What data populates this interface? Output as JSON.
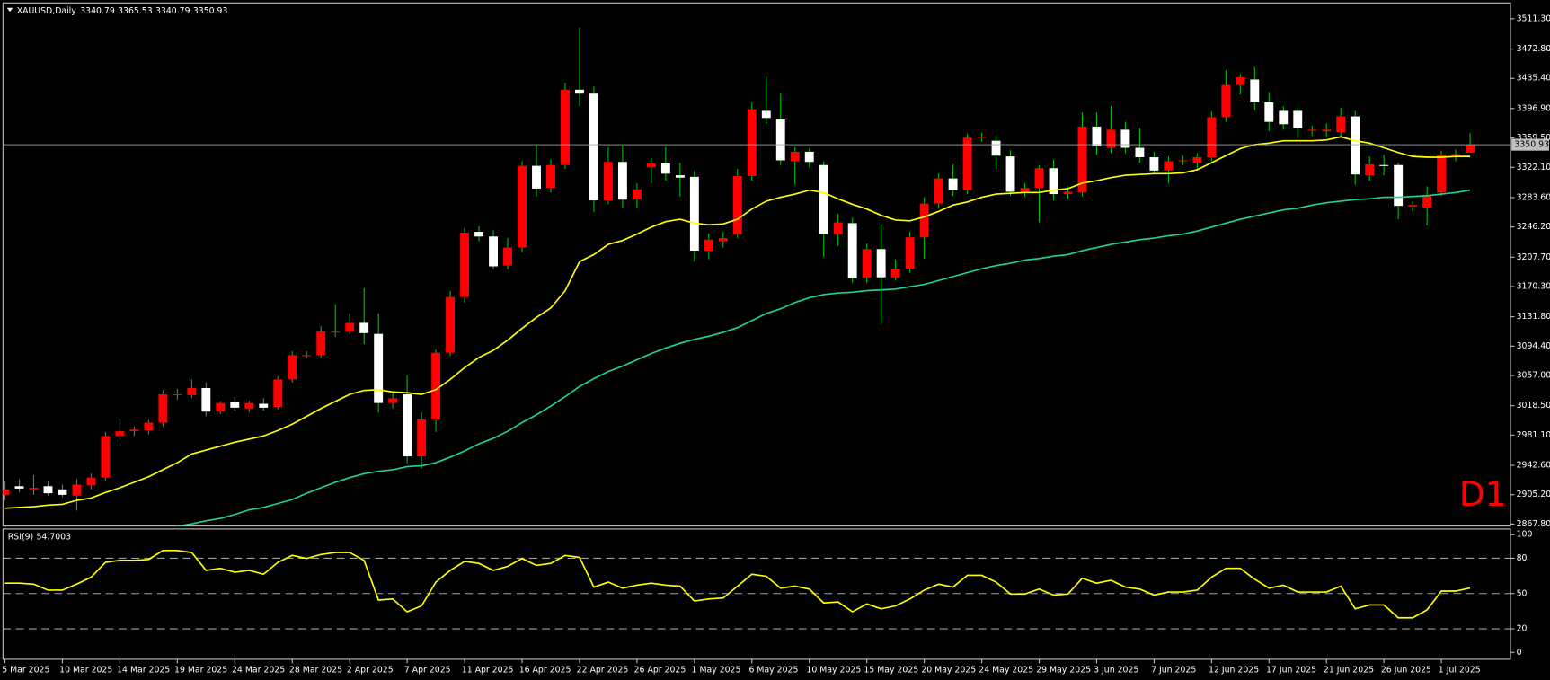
{
  "chart_data": [
    {
      "type": "candlestick",
      "symbol": "XAUUSD,Daily",
      "annotation": "D1",
      "categories": [
        "5 Mar 2025",
        null,
        null,
        null,
        "10 Mar 2025",
        null,
        null,
        null,
        "14 Mar 2025",
        null,
        null,
        null,
        "19 Mar 2025",
        null,
        null,
        null,
        "24 Mar 2025",
        null,
        null,
        null,
        "28 Mar 2025",
        null,
        null,
        null,
        "2 Apr 2025",
        null,
        null,
        null,
        "7 Apr 2025",
        null,
        null,
        null,
        "11 Apr 2025",
        null,
        null,
        null,
        "16 Apr 2025",
        null,
        null,
        null,
        "22 Apr 2025",
        null,
        null,
        null,
        "26 Apr 2025",
        null,
        null,
        null,
        "1 May 2025",
        null,
        null,
        null,
        "6 May 2025",
        null,
        null,
        null,
        "10 May 2025",
        null,
        null,
        null,
        "15 May 2025",
        null,
        null,
        null,
        "20 May 2025",
        null,
        null,
        null,
        "24 May 2025",
        null,
        null,
        null,
        "29 May 2025",
        null,
        null,
        null,
        "3 Jun 2025",
        null,
        null,
        null,
        "7 Jun 2025",
        null,
        null,
        null,
        "12 Jun 2025",
        null,
        null,
        null,
        "17 Jun 2025",
        null,
        null,
        null,
        "21 Jun 2025",
        null,
        null,
        null,
        "26 Jun 2025",
        null,
        null,
        null,
        "1 Jul 2025",
        null,
        null
      ],
      "open": [
        2905,
        2916,
        2912,
        2916,
        2912,
        2904,
        2917,
        2927,
        2980,
        2986,
        2987,
        2997,
        3033,
        3032,
        3041,
        3011,
        3023,
        3015,
        3021,
        3017,
        3052,
        3083,
        3083,
        3113,
        3113,
        3124,
        3110,
        3022,
        3033,
        2954,
        3001,
        3086,
        3157,
        3240,
        3234,
        3197,
        3220,
        3324,
        3296,
        3325,
        3421,
        3416,
        3280,
        3329,
        3281,
        3322,
        3327,
        3312,
        3310,
        3216,
        3228,
        3237,
        3311,
        3394,
        3383,
        3330,
        3342,
        3325,
        3237,
        3251,
        3182,
        3218,
        3182,
        3193,
        3233,
        3276,
        3308,
        3293,
        3360,
        3356,
        3336,
        3291,
        3296,
        3321,
        3288,
        3290,
        3374,
        3347,
        3370,
        3347,
        3335,
        3318,
        3330,
        3328,
        3335,
        3386,
        3427,
        3434,
        3405,
        3394,
        3394,
        3370,
        3368,
        3367,
        3387,
        3312,
        3325,
        3325,
        3272,
        3271,
        3290,
        3338,
        3340.79
      ],
      "high": [
        2922,
        2925,
        2930,
        2922,
        2918,
        2925,
        2932,
        2985,
        3003,
        2992,
        3000,
        3038,
        3040,
        3052,
        3048,
        3024,
        3030,
        3025,
        3028,
        3056,
        3088,
        3088,
        3120,
        3148,
        3136,
        3168,
        3136,
        3035,
        3057,
        3010,
        3090,
        3165,
        3245,
        3247,
        3242,
        3232,
        3330,
        3350,
        3332,
        3430,
        3500,
        3425,
        3348,
        3350,
        3302,
        3334,
        3348,
        3328,
        3318,
        3238,
        3240,
        3320,
        3405,
        3438,
        3416,
        3348,
        3346,
        3330,
        3263,
        3258,
        3225,
        3250,
        3205,
        3240,
        3284,
        3314,
        3326,
        3365,
        3366,
        3362,
        3344,
        3302,
        3325,
        3332,
        3298,
        3392,
        3392,
        3400,
        3380,
        3372,
        3342,
        3336,
        3337,
        3340,
        3393,
        3446,
        3441,
        3450,
        3418,
        3400,
        3398,
        3375,
        3378,
        3398,
        3394,
        3336,
        3338,
        3328,
        3279,
        3298,
        3343,
        3345,
        3365.53
      ],
      "low": [
        2898,
        2908,
        2905,
        2904,
        2902,
        2885,
        2912,
        2923,
        2975,
        2980,
        2982,
        2992,
        3026,
        3028,
        3005,
        3008,
        3012,
        3010,
        3012,
        3014,
        3048,
        3079,
        3080,
        3106,
        3110,
        3097,
        3010,
        3015,
        2945,
        2938,
        2985,
        3082,
        3150,
        3228,
        3192,
        3192,
        3214,
        3285,
        3290,
        3320,
        3400,
        3265,
        3275,
        3270,
        3270,
        3302,
        3305,
        3285,
        3202,
        3205,
        3220,
        3232,
        3305,
        3378,
        3325,
        3300,
        3322,
        3208,
        3222,
        3175,
        3175,
        3123,
        3178,
        3188,
        3206,
        3270,
        3286,
        3288,
        3355,
        3320,
        3286,
        3285,
        3252,
        3280,
        3282,
        3285,
        3338,
        3340,
        3340,
        3328,
        3313,
        3302,
        3325,
        3318,
        3330,
        3380,
        3415,
        3395,
        3368,
        3370,
        3360,
        3362,
        3360,
        3360,
        3300,
        3305,
        3312,
        3256,
        3266,
        3248,
        3286,
        3330,
        3340.79
      ],
      "close": [
        2912,
        2913,
        2914,
        2907,
        2905,
        2918,
        2927,
        2980,
        2986,
        2988,
        2997,
        3033,
        3033,
        3041,
        3011,
        3022,
        3016,
        3022,
        3016,
        3052,
        3083,
        3083,
        3113,
        3113,
        3124,
        3111,
        3022,
        3028,
        2954,
        3001,
        3086,
        3157,
        3239,
        3234,
        3196,
        3220,
        3324,
        3295,
        3325,
        3421,
        3416,
        3280,
        3329,
        3281,
        3294,
        3327,
        3314,
        3309,
        3216,
        3230,
        3232,
        3311,
        3396,
        3385,
        3331,
        3342,
        3329,
        3237,
        3252,
        3181,
        3218,
        3182,
        3193,
        3233,
        3276,
        3308,
        3293,
        3360,
        3361,
        3337,
        3291,
        3296,
        3321,
        3288,
        3291,
        3374,
        3349,
        3370,
        3347,
        3335,
        3318,
        3330,
        3331,
        3335,
        3386,
        3427,
        3437,
        3405,
        3380,
        3377,
        3372,
        3370,
        3370,
        3387,
        3313,
        3326,
        3324,
        3273,
        3274,
        3287,
        3338,
        3339,
        3350.93
      ],
      "up_color": "#ff0000",
      "down_color": "#ffffff",
      "wick_color": "#00c000",
      "series": [
        {
          "color": "#ffff00",
          "values": [
            2888,
            2889,
            2890,
            2892,
            2893,
            2898,
            2901,
            2908,
            2914,
            2921,
            2928,
            2937,
            2946,
            2957,
            2962,
            2967,
            2972,
            2976,
            2980,
            2987,
            2995,
            3005,
            3015,
            3024,
            3033,
            3038,
            3039,
            3036,
            3035,
            3033,
            3039,
            3052,
            3067,
            3080,
            3089,
            3102,
            3117,
            3131,
            3143,
            3165,
            3202,
            3211,
            3224,
            3229,
            3237,
            3246,
            3253,
            3256,
            3251,
            3249,
            3250,
            3256,
            3269,
            3279,
            3284,
            3288,
            3293,
            3290,
            3282,
            3275,
            3269,
            3261,
            3255,
            3254,
            3259,
            3266,
            3274,
            3278,
            3284,
            3288,
            3289,
            3290,
            3290,
            3293,
            3295,
            3302,
            3305,
            3309,
            3312,
            3313,
            3314,
            3314,
            3315,
            3319,
            3328,
            3337,
            3346,
            3351,
            3353,
            3356,
            3356,
            3356,
            3357,
            3361,
            3356,
            3353,
            3347,
            3341,
            3336,
            3335,
            3335,
            3336,
            3336
          ]
        },
        {
          "color": "#20d0a0",
          "values": [
            null,
            null,
            null,
            null,
            null,
            null,
            null,
            null,
            null,
            null,
            null,
            null,
            2865,
            2868,
            2872,
            2875,
            2880,
            2886,
            2889,
            2894,
            2899,
            2907,
            2914,
            2921,
            2927,
            2932,
            2935,
            2937,
            2941,
            2942,
            2946,
            2953,
            2961,
            2970,
            2977,
            2986,
            2997,
            3007,
            3018,
            3030,
            3043,
            3053,
            3062,
            3069,
            3077,
            3085,
            3092,
            3098,
            3103,
            3107,
            3112,
            3118,
            3127,
            3136,
            3142,
            3150,
            3156,
            3160,
            3162,
            3163,
            3165,
            3166,
            3167,
            3170,
            3173,
            3178,
            3183,
            3188,
            3193,
            3197,
            3200,
            3204,
            3206,
            3209,
            3211,
            3216,
            3220,
            3224,
            3227,
            3230,
            3232,
            3235,
            3237,
            3241,
            3246,
            3251,
            3256,
            3260,
            3264,
            3268,
            3270,
            3274,
            3277,
            3279,
            3281,
            3282,
            3284,
            3284,
            3285,
            3286,
            3288,
            3290,
            3293
          ]
        }
      ],
      "ylim": [
        2865.3,
        3528.9
      ],
      "yticks": [
        {
          "value": 3511.3,
          "label": "3511.30"
        },
        {
          "value": 3472.8,
          "label": "3472.80"
        },
        {
          "value": 3435.4,
          "label": "3435.40"
        },
        {
          "value": 3396.9,
          "label": "3396.90"
        },
        {
          "value": 3359.5,
          "label": "3359.50"
        },
        {
          "value": 3322.1,
          "label": "3322.10"
        },
        {
          "value": 3283.6,
          "label": "3283.60"
        },
        {
          "value": 3246.2,
          "label": "3246.20"
        },
        {
          "value": 3207.7,
          "label": "3207.70"
        },
        {
          "value": 3170.3,
          "label": "3170.30"
        },
        {
          "value": 3131.8,
          "label": "3131.80"
        },
        {
          "value": 3094.4,
          "label": "3094.40"
        },
        {
          "value": 3057,
          "label": "3057.00"
        },
        {
          "value": 3018.5,
          "label": "3018.50"
        },
        {
          "value": 2981.1,
          "label": "2981.10"
        },
        {
          "value": 2942.6,
          "label": "2942.60"
        },
        {
          "value": 2905.2,
          "label": "2905.20"
        },
        {
          "value": 2867.8,
          "label": "2867.80"
        }
      ],
      "grid": false
    },
    {
      "type": "line",
      "label": "RSI(9)",
      "color": "#ffff00",
      "values": [
        58.8,
        58.8,
        58.0,
        52.9,
        52.9,
        58.0,
        63.9,
        76.5,
        78.2,
        78.2,
        79.0,
        86.6,
        86.6,
        84.9,
        69.7,
        71.4,
        68.1,
        69.7,
        66.4,
        76.5,
        82.4,
        79.8,
        83.2,
        84.9,
        84.9,
        78.2,
        44.5,
        45.4,
        34.5,
        39.5,
        59.7,
        69.7,
        77.3,
        75.6,
        69.7,
        73.1,
        79.8,
        73.9,
        75.6,
        82.4,
        80.7,
        55.5,
        59.7,
        54.6,
        57.1,
        58.8,
        57.1,
        56.3,
        43.7,
        45.4,
        46.2,
        56.3,
        66.4,
        64.7,
        54.6,
        56.3,
        53.8,
        42.0,
        42.9,
        34.5,
        41.2,
        37.0,
        39.5,
        45.4,
        52.9,
        58.0,
        55.5,
        65.5,
        65.5,
        59.7,
        49.6,
        49.6,
        53.8,
        48.7,
        49.6,
        63.0,
        58.8,
        61.3,
        55.5,
        53.8,
        48.7,
        51.3,
        51.3,
        52.9,
        63.9,
        71.4,
        71.4,
        62.2,
        54.6,
        57.1,
        51.3,
        51.3,
        51.3,
        56.3,
        37.0,
        40.3,
        40.3,
        29.4,
        29.4,
        36.1,
        52.1,
        52.1,
        54.7003
      ],
      "ylim": [
        -5,
        104
      ],
      "yticks": [
        0,
        20,
        50,
        80,
        100
      ],
      "levels": [
        20,
        50,
        80
      ]
    }
  ]
}
